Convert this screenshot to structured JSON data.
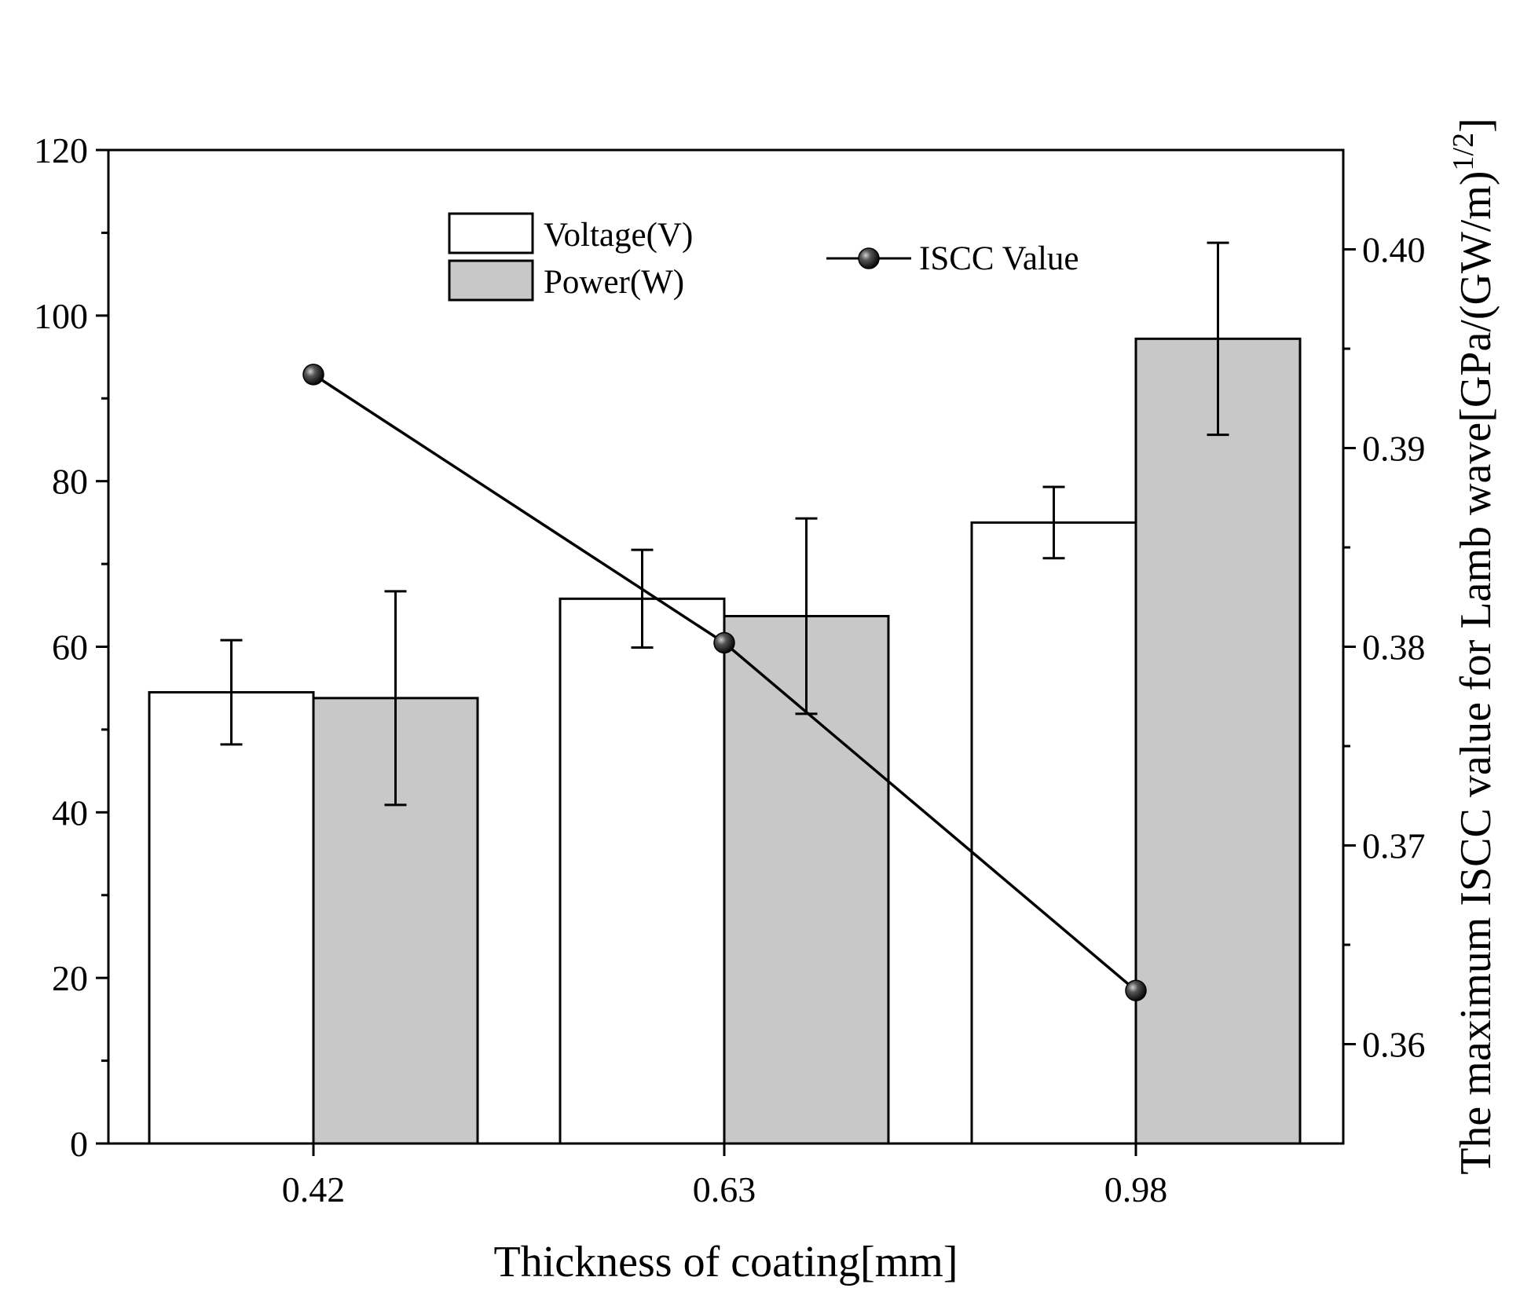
{
  "chart_data": {
    "type": "bar",
    "title": "",
    "xlabel": "Thickness of coating[mm]",
    "ylabel": "",
    "y2label": "The maximum ISCC value for Lamb wave[GPa/(GW/m)",
    "y2label_superscript": "1/2",
    "y2label_suffix": "]",
    "categories": [
      "0.42",
      "0.63",
      "0.98"
    ],
    "ylim": [
      0,
      120
    ],
    "yticks": [
      0,
      20,
      40,
      60,
      80,
      100,
      120
    ],
    "ytick_labels": [
      "0",
      "20",
      "40",
      "60",
      "80",
      "100",
      "120"
    ],
    "y2lim": [
      0.355,
      0.405
    ],
    "y2ticks": [
      0.36,
      0.37,
      0.38,
      0.39,
      0.4
    ],
    "y2tick_labels": [
      "0.36",
      "0.37",
      "0.38",
      "0.39",
      "0.40"
    ],
    "series": [
      {
        "name": "Voltage(V)",
        "axis": "left",
        "kind": "bar",
        "color": "#ffffff",
        "values": [
          54.5,
          65.8,
          75.0
        ],
        "errors": [
          6.3,
          5.9,
          4.3
        ]
      },
      {
        "name": "Power(W)",
        "axis": "left",
        "kind": "bar",
        "color": "#c8c8c8",
        "values": [
          53.8,
          63.7,
          97.2
        ],
        "errors": [
          12.9,
          11.8,
          11.6
        ]
      },
      {
        "name": "ISCC Value",
        "axis": "right",
        "kind": "line",
        "color": "#000000",
        "values": [
          0.3937,
          0.3802,
          0.3627
        ]
      }
    ],
    "legend": {
      "bar_position": "top-center",
      "line_position": "top-right",
      "entries": [
        "Voltage(V)",
        "Power(W)",
        "ISCC Value"
      ]
    }
  }
}
